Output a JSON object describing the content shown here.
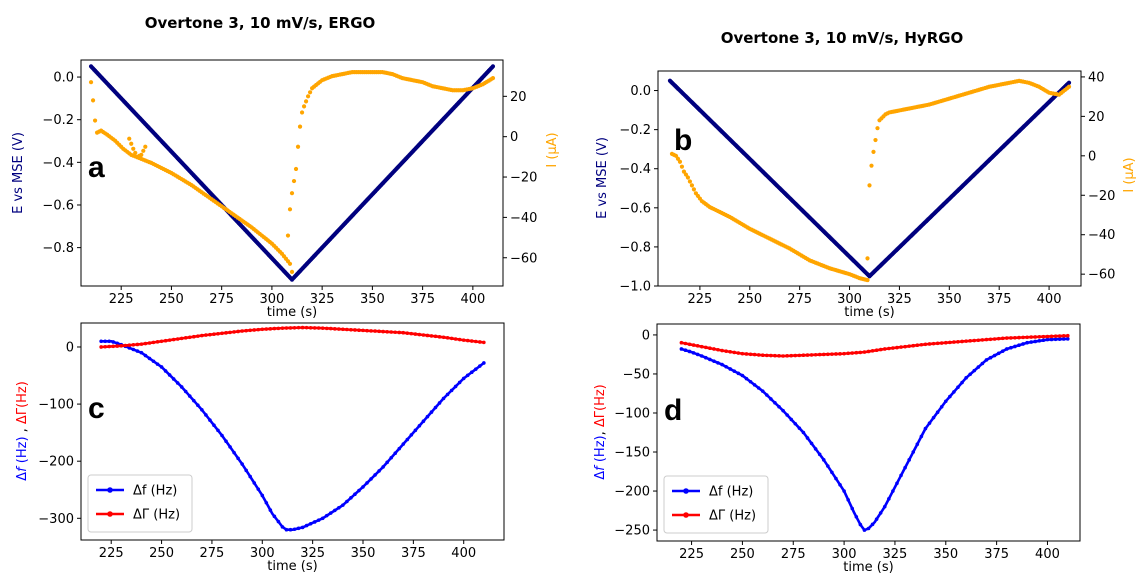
{
  "colors": {
    "potential": "#00007f",
    "current": "#ffa500",
    "df": "#0000ff",
    "dG": "#ff0000"
  },
  "chart_data": [
    {
      "type": "scatter",
      "letter": "a",
      "title": "Overtone 3, 10 mV/s, ERGO",
      "xlabel": "time (s)",
      "ylabel": "E vs MSE (V)",
      "y2label": "I (μA)",
      "xlim": [
        205,
        415
      ],
      "ylim": [
        -0.98,
        0.08
      ],
      "y2lim": [
        -74,
        38
      ],
      "xticks": [
        225,
        250,
        275,
        300,
        325,
        350,
        375,
        400
      ],
      "yticks": [
        0.0,
        -0.2,
        -0.4,
        -0.6,
        -0.8
      ],
      "y2ticks": [
        20,
        0,
        -20,
        -40,
        -60
      ],
      "xtick_labels": [
        "225",
        "250",
        "275",
        "300",
        "325",
        "350",
        "375",
        "400"
      ],
      "ytick_labels": [
        "0.0",
        "−0.2",
        "−0.4",
        "−0.6",
        "−0.8"
      ],
      "y2tick_labels": [
        "20",
        "0",
        "−20",
        "−40",
        "−60"
      ],
      "series": [
        {
          "axis": "y",
          "color_key": "potential",
          "x": [
            210,
            310,
            410
          ],
          "y": [
            0.05,
            -0.95,
            0.05
          ]
        },
        {
          "axis": "y2",
          "color_key": "current",
          "x": [
            210,
            211,
            212,
            213,
            215,
            218,
            222,
            226,
            230,
            240,
            250,
            260,
            270,
            280,
            290,
            300,
            305,
            309,
            310
          ],
          "y": [
            27,
            18,
            8,
            2,
            3,
            1,
            -2,
            -6,
            -9,
            -13,
            -18,
            -24,
            -31,
            -38,
            -45,
            -53,
            -58,
            -63,
            -67
          ]
        },
        {
          "axis": "y2",
          "color_key": "current",
          "x": [
            229,
            231,
            233,
            235,
            237
          ],
          "y": [
            -1,
            -6,
            -10,
            -9,
            -5
          ]
        },
        {
          "axis": "y2",
          "color_key": "current",
          "x": [
            308,
            309,
            310,
            311,
            312,
            313,
            314,
            315,
            316,
            318,
            320,
            325,
            330,
            335,
            340,
            345,
            350,
            355,
            360,
            365,
            370,
            375,
            380,
            385,
            390,
            395,
            400,
            405,
            410
          ],
          "y": [
            -49,
            -36,
            -28,
            -22,
            -16,
            -5,
            5,
            12,
            15,
            20,
            24,
            28,
            30,
            31,
            32,
            32,
            32,
            32,
            31,
            29,
            28,
            27,
            25,
            24,
            23,
            23,
            24,
            26,
            29
          ]
        }
      ]
    },
    {
      "type": "scatter",
      "letter": "b",
      "title": "Overtone 3, 10 mV/s, HyRGO",
      "xlabel": "time (s)",
      "ylabel": "E vs MSE (V)",
      "y2label": "I (μA)",
      "xlim": [
        204,
        416
      ],
      "ylim": [
        -1.0,
        0.1
      ],
      "y2lim": [
        -66,
        43
      ],
      "xticks": [
        225,
        250,
        275,
        300,
        325,
        350,
        375,
        400
      ],
      "yticks": [
        0.0,
        -0.2,
        -0.4,
        -0.6,
        -0.8,
        -1.0
      ],
      "y2ticks": [
        40,
        20,
        0,
        -20,
        -40,
        -60
      ],
      "xtick_labels": [
        "225",
        "250",
        "275",
        "300",
        "325",
        "350",
        "375",
        "400"
      ],
      "ytick_labels": [
        "0.0",
        "−0.2",
        "−0.4",
        "−0.6",
        "−0.8",
        "−1.0"
      ],
      "y2tick_labels": [
        "40",
        "20",
        "0",
        "−20",
        "−40",
        "−60"
      ],
      "series": [
        {
          "axis": "y",
          "color_key": "potential",
          "x": [
            210,
            310,
            410
          ],
          "y": [
            0.05,
            -0.95,
            0.04
          ]
        },
        {
          "axis": "y2",
          "color_key": "current",
          "x": [
            211,
            213,
            215,
            217,
            219,
            221,
            223,
            226,
            230,
            240,
            250,
            260,
            270,
            280,
            290,
            300,
            305,
            309
          ],
          "y": [
            1,
            0,
            -3,
            -8,
            -11,
            -15,
            -19,
            -23,
            -26,
            -31,
            -37,
            -42,
            -47,
            -53,
            -57,
            -60,
            -62,
            -63
          ]
        },
        {
          "axis": "y2",
          "color_key": "current",
          "x": [
            309,
            310,
            311,
            312,
            313,
            314,
            315,
            316,
            317,
            318,
            320,
            325,
            330,
            340,
            350,
            360,
            370,
            380,
            385,
            390,
            395,
            400,
            405,
            410
          ],
          "y": [
            -52,
            -15,
            -5,
            2,
            8,
            14,
            18,
            19,
            20,
            21,
            22,
            23,
            24,
            26,
            29,
            32,
            35,
            37,
            38,
            37,
            35,
            32,
            31,
            35
          ]
        }
      ]
    },
    {
      "type": "line",
      "letter": "c",
      "xlabel": "time (s)",
      "ylabel_parts": [
        "Δ",
        "f",
        " (Hz)",
        " , ",
        "ΔΓ(Hz)"
      ],
      "xlim": [
        210,
        420
      ],
      "ylim": [
        -338,
        42
      ],
      "xticks": [
        225,
        250,
        275,
        300,
        325,
        350,
        375,
        400
      ],
      "yticks": [
        0,
        -100,
        -200,
        -300
      ],
      "xtick_labels": [
        "225",
        "250",
        "275",
        "300",
        "325",
        "350",
        "375",
        "400"
      ],
      "ytick_labels": [
        "0",
        "−100",
        "−200",
        "−300"
      ],
      "legend_position": "lower-left",
      "series": [
        {
          "name": "Δf (Hz)",
          "color_key": "df",
          "x": [
            220,
            225,
            230,
            240,
            250,
            260,
            270,
            280,
            290,
            300,
            305,
            310,
            312,
            315,
            320,
            330,
            340,
            350,
            360,
            370,
            380,
            390,
            400,
            410
          ],
          "y": [
            10,
            10,
            4,
            -10,
            -35,
            -70,
            -110,
            -155,
            -205,
            -260,
            -292,
            -315,
            -320,
            -320,
            -316,
            -300,
            -277,
            -245,
            -210,
            -170,
            -130,
            -90,
            -55,
            -28
          ]
        },
        {
          "name": "ΔΓ (Hz)",
          "color_key": "dG",
          "x": [
            220,
            230,
            240,
            250,
            260,
            270,
            280,
            290,
            300,
            310,
            320,
            330,
            340,
            350,
            360,
            370,
            380,
            390,
            400,
            410
          ],
          "y": [
            0,
            2,
            5,
            10,
            15,
            20,
            24,
            28,
            31,
            33,
            34,
            33,
            31,
            29,
            27,
            25,
            21,
            17,
            12,
            8
          ]
        }
      ]
    },
    {
      "type": "line",
      "letter": "d",
      "xlabel": "time (s)",
      "ylabel_parts": [
        "Δ",
        "f",
        " (Hz)",
        ", ",
        "ΔΓ(Hz)"
      ],
      "xlim": [
        208,
        416
      ],
      "ylim": [
        -264,
        14
      ],
      "xticks": [
        225,
        250,
        275,
        300,
        325,
        350,
        375,
        400
      ],
      "yticks": [
        0,
        -50,
        -100,
        -150,
        -200,
        -250
      ],
      "xtick_labels": [
        "225",
        "250",
        "275",
        "300",
        "325",
        "350",
        "375",
        "400"
      ],
      "ytick_labels": [
        "0",
        "−50",
        "−100",
        "−150",
        "−200",
        "−250"
      ],
      "legend_position": "lower-left",
      "series": [
        {
          "name": "Δf (Hz)",
          "color_key": "df",
          "x": [
            220,
            225,
            230,
            240,
            250,
            260,
            270,
            280,
            290,
            300,
            305,
            308,
            310,
            312,
            315,
            320,
            330,
            340,
            350,
            360,
            370,
            380,
            390,
            400,
            410
          ],
          "y": [
            -18,
            -22,
            -27,
            -38,
            -52,
            -72,
            -97,
            -125,
            -160,
            -200,
            -228,
            -243,
            -250,
            -248,
            -240,
            -220,
            -170,
            -120,
            -85,
            -55,
            -32,
            -18,
            -10,
            -6,
            -5
          ]
        },
        {
          "name": "ΔΓ (Hz)",
          "color_key": "dG",
          "x": [
            220,
            230,
            240,
            250,
            260,
            270,
            280,
            290,
            300,
            310,
            320,
            330,
            340,
            350,
            360,
            370,
            380,
            390,
            400,
            410
          ],
          "y": [
            -10,
            -15,
            -20,
            -24,
            -26,
            -27,
            -26,
            -25,
            -24,
            -22,
            -18,
            -15,
            -12,
            -10,
            -8,
            -6,
            -4,
            -3,
            -2,
            -1
          ]
        }
      ]
    }
  ]
}
